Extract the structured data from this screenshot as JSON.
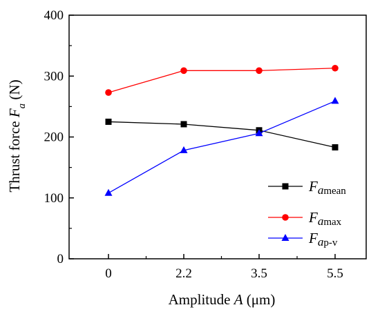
{
  "chart_data": {
    "type": "line",
    "title": "",
    "xlabel": {
      "prefix": "Amplitude ",
      "symbol": "A",
      "suffix": " (μm)"
    },
    "ylabel": {
      "prefix": "Thrust force ",
      "symbol": "F",
      "subscript": "a",
      "suffix": " (N)"
    },
    "categories": [
      "0",
      "2.2",
      "3.5",
      "5.5"
    ],
    "ylim": [
      0,
      400
    ],
    "yticks": [
      "0",
      "100",
      "200",
      "300",
      "400"
    ],
    "grid": false,
    "legend_position": "bottom-right",
    "series": [
      {
        "symbol": "F",
        "sub_italic": "a",
        "sub_plain": "mean",
        "values": [
          225,
          221,
          211,
          183
        ],
        "color": "#000000",
        "marker": "square"
      },
      {
        "symbol": "F",
        "sub_italic": "a",
        "sub_plain": "max",
        "values": [
          273,
          309,
          309,
          313
        ],
        "color": "#ff0000",
        "marker": "circle"
      },
      {
        "symbol": "F",
        "sub_italic": "a",
        "sub_plain": "p-v",
        "values": [
          108,
          178,
          206,
          259
        ],
        "color": "#0000ff",
        "marker": "triangle"
      }
    ]
  }
}
